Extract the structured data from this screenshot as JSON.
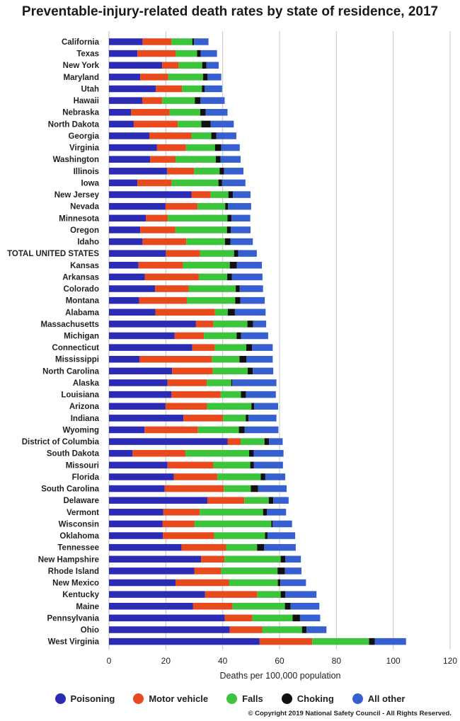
{
  "title": "Preventable-injury-related death rates by state of residence, 2017",
  "copyright": "© Copyright 2019 National Safety Council - All Rights Reserved.",
  "chart_data": {
    "type": "bar",
    "orientation": "horizontal",
    "stacked": true,
    "xlabel": "Deaths per 100,000 population",
    "xlim": [
      0,
      120
    ],
    "xticks": [
      0,
      20,
      40,
      60,
      80,
      100,
      120
    ],
    "grid": true,
    "legend_position": "bottom",
    "categories": [
      "California",
      "Texas",
      "New York",
      "Maryland",
      "Utah",
      "Hawaii",
      "Nebraska",
      "North Dakota",
      "Georgia",
      "Virginia",
      "Washington",
      "Illinois",
      "Iowa",
      "New Jersey",
      "Nevada",
      "Minnesota",
      "Oregon",
      "Idaho",
      "TOTAL UNITED STATES",
      "Kansas",
      "Arkansas",
      "Colorado",
      "Montana",
      "Alabama",
      "Massachusetts",
      "Michigan",
      "Connecticut",
      "Mississippi",
      "North Carolina",
      "Alaska",
      "Louisiana",
      "Arizona",
      "Indiana",
      "Wyoming",
      "District of Columbia",
      "South Dakota",
      "Missouri",
      "Florida",
      "South Carolina",
      "Delaware",
      "Vermont",
      "Wisconsin",
      "Oklahoma",
      "Tennessee",
      "New Hampshire",
      "Rhode Island",
      "New Mexico",
      "Kentucky",
      "Maine",
      "Pennsylvania",
      "Ohio",
      "West Virginia"
    ],
    "series": [
      {
        "name": "Poisoning",
        "color": "#2b2bb5",
        "values": [
          11.8,
          10,
          18.7,
          11,
          16.5,
          11.7,
          7.8,
          8.7,
          14.2,
          16.9,
          14.5,
          20.4,
          10,
          29,
          19.9,
          13,
          11,
          11.8,
          20,
          10.4,
          12.6,
          16.2,
          10.6,
          16.3,
          30.6,
          23.1,
          29.3,
          10.7,
          22.2,
          20.6,
          22,
          19.9,
          26.2,
          12.5,
          41.7,
          8.3,
          20.6,
          22.8,
          19.6,
          34.6,
          19.1,
          18.8,
          19,
          25.5,
          32.4,
          30,
          23.4,
          33.8,
          29.6,
          40.7,
          42.5,
          53
        ]
      },
      {
        "name": "Motor vehicle",
        "color": "#e8491d",
        "values": [
          10.2,
          13.5,
          5.8,
          9.8,
          9.2,
          7,
          13.5,
          15.5,
          14.8,
          10.2,
          8.9,
          9.5,
          12,
          6.8,
          11.2,
          7.7,
          12.3,
          15.4,
          12,
          15.6,
          19,
          11.8,
          16.8,
          21,
          6.1,
          10.3,
          7.9,
          25.5,
          14.3,
          13.8,
          17.3,
          14.6,
          13.9,
          18.8,
          4.6,
          18.6,
          16.1,
          15.3,
          20.8,
          13,
          12.8,
          11.3,
          18,
          15.7,
          8.2,
          9.5,
          18.8,
          18.4,
          13.9,
          9.7,
          11.4,
          18.5
        ]
      },
      {
        "name": "Falls",
        "color": "#3cc43c",
        "values": [
          7.3,
          7.5,
          8.3,
          12.3,
          7,
          11.5,
          10.8,
          8.3,
          7,
          10.2,
          14.2,
          9,
          16.5,
          6.2,
          9.8,
          21,
          18.2,
          13.6,
          12,
          16.5,
          10,
          16.6,
          17,
          4.5,
          12,
          11.5,
          11.1,
          9.7,
          12.3,
          8.6,
          7.1,
          15.6,
          8,
          14.4,
          8.4,
          22.4,
          13,
          15.3,
          9.5,
          8.6,
          22.3,
          27,
          17.9,
          10.9,
          19.8,
          19.8,
          17.2,
          8.2,
          18.4,
          14.2,
          14,
          20
        ]
      },
      {
        "name": "Choking",
        "color": "#111111",
        "values": [
          0.6,
          1.3,
          1.5,
          1.6,
          1,
          2,
          1.9,
          3.3,
          1.8,
          2.2,
          1.6,
          1.6,
          1.3,
          1.6,
          1,
          1.4,
          1.4,
          1.9,
          1.5,
          2.5,
          1.6,
          1.4,
          1.8,
          2.5,
          2,
          1.6,
          2,
          2.4,
          1.8,
          0.4,
          1.8,
          1,
          1,
          2,
          1.6,
          1.6,
          1.3,
          1.6,
          2.5,
          1.6,
          1.4,
          0.5,
          0.9,
          2.5,
          1.6,
          2.6,
          0.9,
          1.6,
          2,
          2.6,
          1.6,
          2
        ]
      },
      {
        "name": "All other",
        "color": "#3660cf",
        "values": [
          5.1,
          5.7,
          4.3,
          4.8,
          6.1,
          8.5,
          7.7,
          8.1,
          7,
          6.5,
          7.1,
          6.8,
          8.2,
          6.2,
          8.1,
          6.6,
          6.9,
          7.9,
          6.5,
          8.8,
          10.8,
          8.2,
          8.6,
          10.8,
          4.6,
          9.5,
          7.3,
          9.3,
          7.2,
          15.5,
          10.5,
          8.4,
          9.8,
          11.9,
          4.8,
          10.5,
          10.2,
          7,
          10.1,
          5.4,
          6.7,
          6.8,
          9.7,
          11.1,
          5.5,
          5.8,
          9,
          11,
          10.1,
          7.1,
          7,
          11
        ]
      }
    ]
  }
}
